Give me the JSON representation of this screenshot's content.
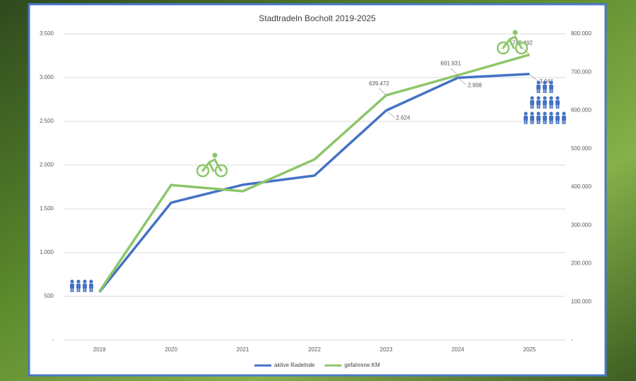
{
  "chart_data": {
    "type": "line",
    "title": "Stadtradeln Bocholt 2019-2025",
    "categories": [
      "2019",
      "2020",
      "2021",
      "2022",
      "2023",
      "2024",
      "2025"
    ],
    "series": [
      {
        "name": "aktive Radelnde",
        "color": "#4472c4",
        "axis": "y",
        "values": [
          550,
          1570,
          1775,
          1880,
          2624,
          2998,
          3041
        ],
        "value_labels": [
          null,
          null,
          null,
          null,
          "2.624",
          "2.998",
          "3.041"
        ]
      },
      {
        "name": "gefahrene KM",
        "color": "#8cc66a",
        "axis": "y2",
        "values": [
          127000,
          405000,
          389000,
          472000,
          639472,
          691931,
          745492
        ],
        "value_labels": [
          null,
          null,
          null,
          null,
          "639.472",
          "691.931",
          "745.492"
        ]
      }
    ],
    "ylim": [
      0,
      3500
    ],
    "yticks": [
      {
        "value": 0,
        "label": "-"
      },
      500,
      {
        "value": 1000,
        "label": "1.000"
      },
      {
        "value": 1500,
        "label": "1.500"
      },
      {
        "value": 2000,
        "label": "2.000"
      },
      {
        "value": 2500,
        "label": "2.500"
      },
      {
        "value": 3000,
        "label": "3.000"
      },
      {
        "value": 3500,
        "label": "3.500"
      }
    ],
    "y2lim": [
      0,
      800000
    ],
    "y2ticks": [
      {
        "value": 0,
        "label": "-"
      },
      {
        "value": 100000,
        "label": "100.000"
      },
      {
        "value": 200000,
        "label": "200.000"
      },
      {
        "value": 300000,
        "label": "300.000"
      },
      {
        "value": 400000,
        "label": "400.000"
      },
      {
        "value": 500000,
        "label": "500.000"
      },
      {
        "value": 600000,
        "label": "600.000"
      },
      {
        "value": 700000,
        "label": "700.000"
      },
      {
        "value": 800000,
        "label": "800.000"
      }
    ],
    "grid": true,
    "legend": "bottom"
  }
}
